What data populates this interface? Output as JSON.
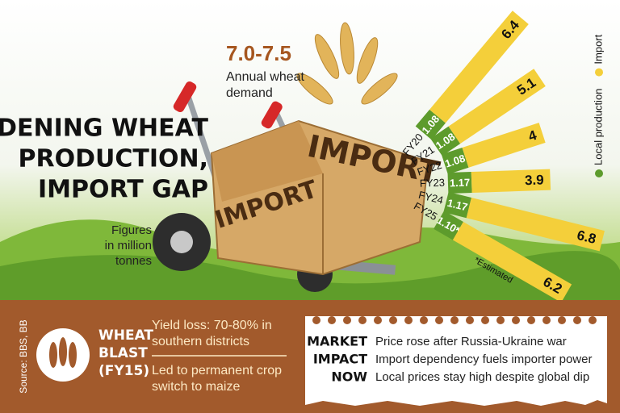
{
  "chart_data": {
    "type": "radial-bar",
    "title": [
      "WIDENING WHEAT",
      "PRODUCTION,",
      "IMPORT GAP"
    ],
    "demand_value": "7.0-7.5",
    "demand_label": [
      "Annual wheat",
      "demand"
    ],
    "units_note": [
      "Figures",
      "in million",
      "tonnes"
    ],
    "footnote": "*Estimated",
    "categories": [
      "FY20",
      "FY21",
      "FY22",
      "FY23",
      "FY24",
      "FY25"
    ],
    "series": [
      {
        "name": "Local production",
        "color": "#5d9b2c",
        "values": [
          1.08,
          1.08,
          1.08,
          1.17,
          1.17,
          1.1
        ],
        "value_labels": [
          "1.08",
          "1.08",
          "1.08",
          "1.17",
          "1.17",
          "1.10*"
        ]
      },
      {
        "name": "Import",
        "color": "#f4cf3a",
        "values": [
          6.4,
          5.1,
          4.0,
          3.9,
          6.8,
          6.2
        ]
      }
    ]
  },
  "box_labels": [
    "IMPORT",
    "IMPORT"
  ],
  "source": "Source: BBS, BB",
  "wheat_blast": {
    "title": [
      "WHEAT",
      "BLAST",
      "(FY15)"
    ],
    "points": [
      [
        "Yield loss: 70-80% in",
        "southern districts"
      ],
      [
        "Led to permanent crop",
        "switch to maize"
      ]
    ]
  },
  "market_impact": {
    "title": [
      "MARKET",
      "IMPACT",
      "NOW"
    ],
    "lines": [
      "Price rose after Russia-Ukraine war",
      "Import dependency fuels importer power",
      "Local prices stay high despite global dip"
    ]
  }
}
